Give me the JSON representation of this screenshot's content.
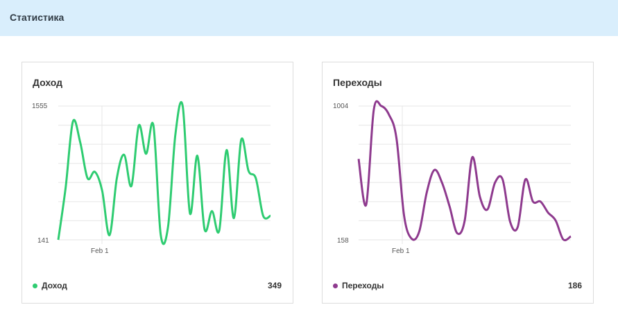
{
  "header": {
    "title": "Статистика"
  },
  "income": {
    "title": "Доход",
    "legend_label": "Доход",
    "total": "349",
    "color": "#2ecc71",
    "y_max_label": "1555",
    "y_min_label": "141",
    "x_tick_label": "Feb 1"
  },
  "visits": {
    "title": "Переходы",
    "legend_label": "Переходы",
    "total": "186",
    "color": "#8e3a8e",
    "y_max_label": "1004",
    "y_min_label": "158",
    "x_tick_label": "Feb 1"
  },
  "chart_data": [
    {
      "type": "line",
      "title": "Доход",
      "series": [
        {
          "name": "Доход",
          "values": [
            141,
            690,
            1390,
            1170,
            792,
            860,
            660,
            190,
            790,
            1040,
            710,
            1350,
            1050,
            1350,
            195,
            280,
            1250,
            1555,
            420,
            1030,
            250,
            445,
            240,
            1090,
            370,
            1200,
            870,
            790,
            395,
            395
          ]
        }
      ],
      "x_tick_labels": [
        "Feb 1"
      ],
      "ylim": [
        141,
        1555
      ],
      "y_tick_labels": [
        "1555",
        "141"
      ],
      "grid": true
    },
    {
      "type": "line",
      "title": "Переходы",
      "series": [
        {
          "name": "Переходы",
          "values": [
            670,
            380,
            980,
            1004,
            950,
            800,
            310,
            165,
            210,
            460,
            600,
            520,
            370,
            200,
            280,
            680,
            430,
            350,
            520,
            540,
            270,
            240,
            540,
            400,
            400,
            330,
            280,
            160,
            180
          ]
        }
      ],
      "x_tick_labels": [
        "Feb 1"
      ],
      "ylim": [
        158,
        1004
      ],
      "y_tick_labels": [
        "1004",
        "158"
      ],
      "grid": true
    }
  ]
}
